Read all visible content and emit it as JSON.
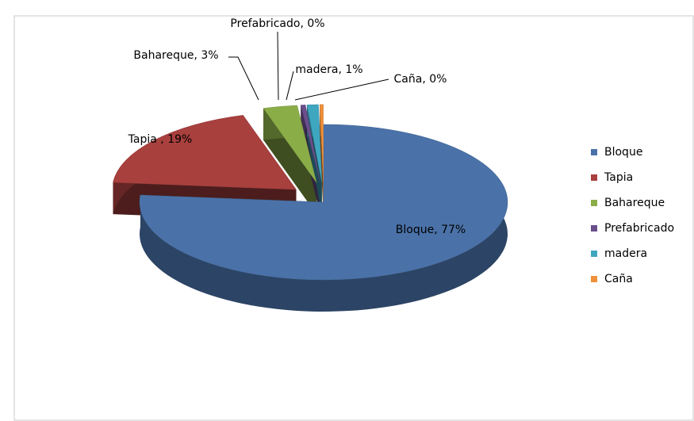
{
  "chart_data": {
    "type": "pie3d",
    "categories": [
      "Bloque",
      "Tapia",
      "Bahareque",
      "Prefabricado",
      "madera",
      "Caña"
    ],
    "values": [
      77,
      19,
      3,
      0.4,
      1,
      0.3
    ],
    "value_labels": [
      "Bloque, 77%",
      "Tapia , 19%",
      "Bahareque, 3%",
      "Prefabricado, 0%",
      "madera, 1%",
      "Caña, 0%"
    ],
    "colors": [
      "#4a72a8",
      "#a8403e",
      "#8aad48",
      "#6a4f8c",
      "#3fa6c0",
      "#f0903a"
    ],
    "legend": "right"
  }
}
